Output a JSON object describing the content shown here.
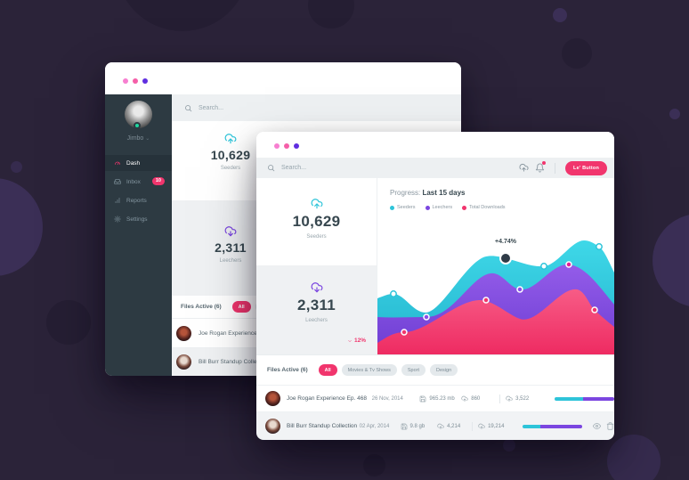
{
  "colors": {
    "accent_pink": "#F1356D",
    "teal": "#2EC4D9",
    "purple": "#7B46E0",
    "background": "#2B2339"
  },
  "back": {
    "user_name": "Jimbo",
    "menu": [
      {
        "label": "Dash",
        "active": true
      },
      {
        "label": "Inbox",
        "badge": "10"
      },
      {
        "label": "Reports"
      },
      {
        "label": "Settings"
      }
    ],
    "search_placeholder": "Search...",
    "stat_seeders": {
      "value": "10,629",
      "label": "Seeders"
    },
    "stat_leechers": {
      "value": "2,311",
      "label": "Leechers"
    },
    "files_label": "Files Active (6)",
    "pills": [
      {
        "label": "All",
        "active": true
      },
      {
        "label": "Movies & Tv Shows"
      }
    ],
    "rows": [
      {
        "title": "Joe Rogan Experience Ep. 468"
      },
      {
        "title": "Bill Burr Standup Collection"
      }
    ]
  },
  "front": {
    "search_placeholder": "Search...",
    "header_button": "Le' Button",
    "stat_seeders": {
      "value": "10,629",
      "label": "Seeders"
    },
    "stat_leechers": {
      "value": "2,311",
      "label": "Leechers",
      "delta": "12%"
    },
    "chart": {
      "title_prefix": "Progress:",
      "title": "Last 15 days",
      "legend": [
        "Seeders",
        "Leechers",
        "Total Downloads"
      ],
      "annotation": "+4.74%"
    },
    "files": {
      "label": "Files Active (6)",
      "pills": [
        {
          "label": "All",
          "active": true
        },
        {
          "label": "Movies & Tv Shows"
        },
        {
          "label": "Sport"
        },
        {
          "label": "Design"
        }
      ],
      "rows": [
        {
          "title": "Joe Rogan Experience Ep. 468",
          "date": "26 Nov, 2014",
          "size": "965.23 mb",
          "seeders": "860",
          "leechers": "3,522",
          "progress_seed_pct": 48
        },
        {
          "title": "Bill Burr Standup Collection",
          "date": "02 Apr, 2014",
          "size": "9.8 gb",
          "seeders": "4,214",
          "leechers": "19,214",
          "progress_seed_pct": 30
        }
      ]
    }
  },
  "chart_data": {
    "type": "area",
    "title": "Progress: Last 15 days",
    "legend_position": "top",
    "x": [
      1,
      2,
      3,
      4,
      5,
      6,
      7,
      8
    ],
    "series": [
      {
        "name": "Seeders",
        "color": "#2EC4D9",
        "values": [
          40,
          42,
          29,
          69,
          67,
          62,
          80,
          56
        ]
      },
      {
        "name": "Leechers",
        "color": "#7B46E0",
        "values": [
          26,
          27,
          40,
          57,
          46,
          63,
          45,
          34
        ]
      },
      {
        "name": "Total Downloads",
        "color": "#F1356D",
        "values": [
          8,
          16,
          30,
          38,
          25,
          46,
          31,
          19
        ]
      }
    ],
    "annotation": {
      "text": "+4.74%",
      "series": "Seeders",
      "x": 4
    }
  }
}
